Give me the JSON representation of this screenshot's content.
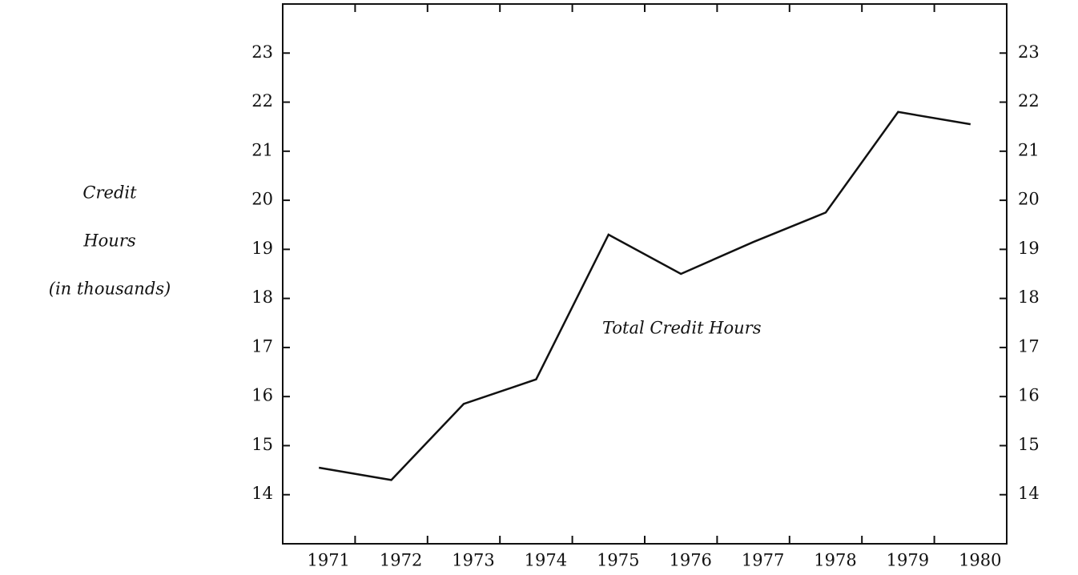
{
  "chart_data": {
    "type": "line",
    "y_label": [
      "Credit",
      "Hours",
      "(in thousands)"
    ],
    "annotation": "Total Credit Hours",
    "categories": [
      "1971",
      "1972",
      "1973",
      "1974",
      "1975",
      "1976",
      "1977",
      "1978",
      "1979",
      "1980"
    ],
    "series": [
      {
        "name": "Total Credit Hours",
        "color": "#111111",
        "values": [
          14.55,
          14.3,
          15.85,
          16.35,
          19.3,
          18.5,
          19.15,
          19.75,
          21.8,
          21.55
        ]
      }
    ],
    "ylim": [
      13,
      24
    ],
    "yticks": [
      14,
      15,
      16,
      17,
      18,
      19,
      20,
      21,
      22,
      23
    ],
    "y2lim": [
      13,
      24
    ],
    "y2ticks": [
      14,
      15,
      16,
      17,
      18,
      19,
      20,
      21,
      22,
      23
    ],
    "grid": false
  }
}
